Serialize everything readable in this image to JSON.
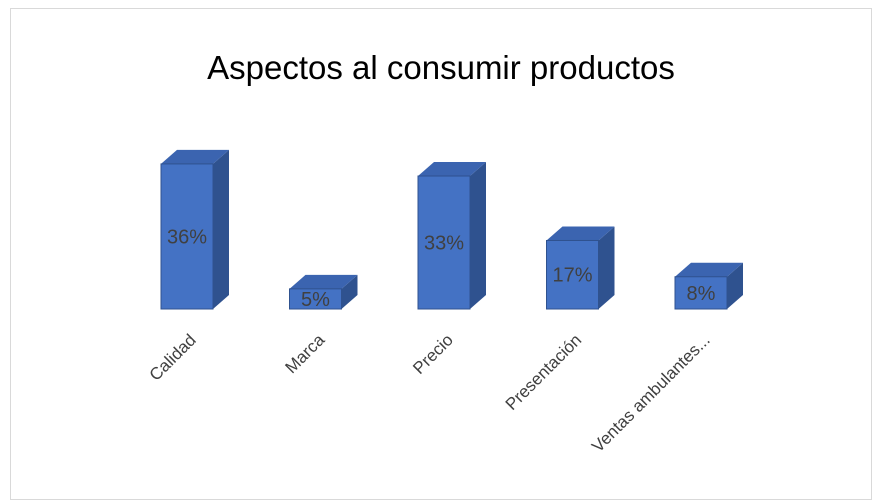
{
  "chart_data": {
    "type": "bar",
    "title": "Aspectos al consumir productos",
    "categories": [
      "Calidad",
      "Marca",
      "Precio",
      "Presentación",
      "Ventas ambulantes..."
    ],
    "values": [
      36,
      5,
      33,
      17,
      8
    ],
    "data_labels": [
      "36%",
      "5%",
      "33%",
      "17%",
      "8%"
    ],
    "ylim": [
      0,
      40
    ],
    "grid": false,
    "legend": "none",
    "colors": {
      "front": "#4472c4",
      "side": "#2f528f",
      "top": "#3b64b0",
      "edge": "#2f528f"
    }
  }
}
